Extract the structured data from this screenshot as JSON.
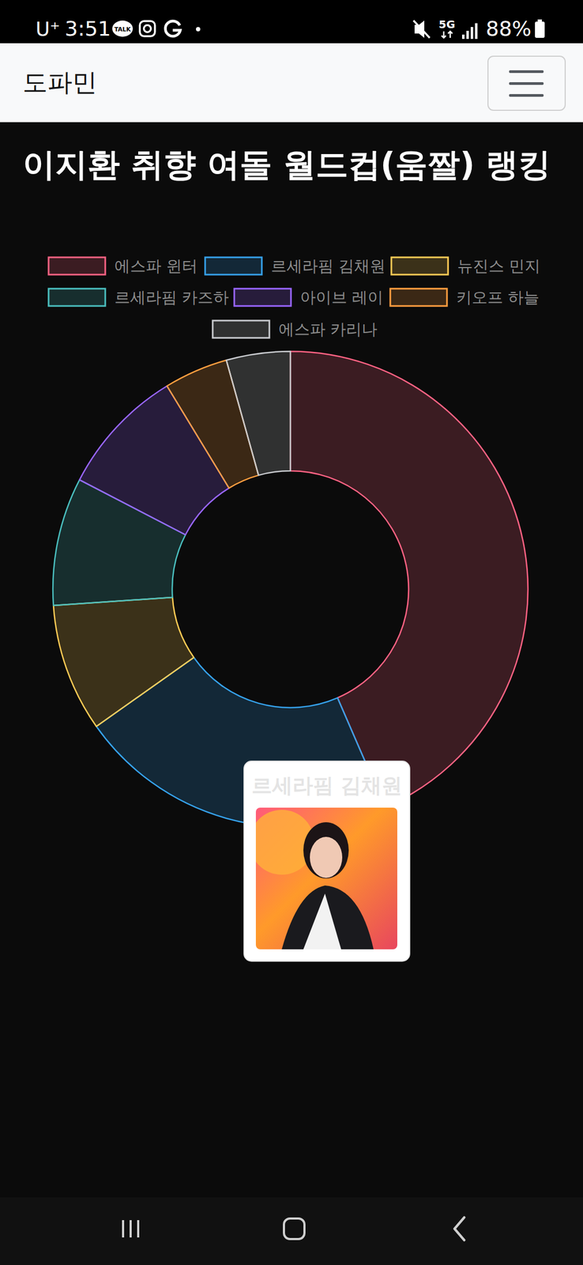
{
  "page": {
    "status_bar": {
      "carrier": "U⁺",
      "time": "3:51",
      "talk_icon": "TALK",
      "network": "5G",
      "battery": "88%"
    },
    "header": {
      "brand": "도파민"
    },
    "tooltip": {
      "title": "르세라핌 김채원"
    }
  },
  "chart_data": {
    "type": "doughnut",
    "title": "이지환 취향 여돌 월드컵(움짤) 랭킹",
    "categories": [
      "에스파 윈터",
      "르세라핌 김채원",
      "뉴진스 민지",
      "르세라핌 카즈하",
      "아이브 레이",
      "키오프 하늘",
      "에스파 카리나"
    ],
    "values": [
      10,
      5,
      2,
      2,
      2,
      1,
      1
    ],
    "colors": [
      "#ff6384",
      "#36a2eb",
      "#ffcd56",
      "#4bc0c0",
      "#9966ff",
      "#ff9f40",
      "#c9cbcf"
    ],
    "legend": "top"
  }
}
